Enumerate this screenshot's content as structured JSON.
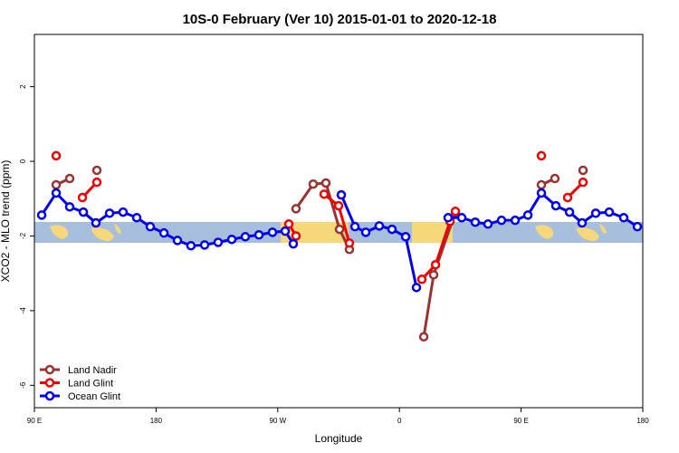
{
  "chart_data": {
    "type": "line",
    "title": "10S-0 February (Ver 10)   2015-01-01 to 2020-12-18",
    "xlabel": "Longitude",
    "ylabel": "XCO2 - MLO trend (ppm)",
    "xlim": [
      90,
      540
    ],
    "ylim": [
      -6.6,
      3.4
    ],
    "xticks": [
      {
        "value": 90,
        "label": "90 E"
      },
      180,
      {
        "value": 270,
        "label": "90 W"
      },
      {
        "value": 360,
        "label": "0"
      },
      {
        "value": 450,
        "label": "90 E"
      },
      {
        "value": 540,
        "label": "180"
      }
    ],
    "yticks": [
      -6,
      -4,
      -2,
      0,
      2
    ],
    "legend": "bottom-left",
    "series": [
      {
        "name": "Land Nadir",
        "color": "#993333",
        "x": [
          106.1,
          116.1,
          null,
          136.2,
          null,
          283.5,
          296.2,
          305.6,
          315.7,
          323.0,
          null,
          378.0,
          385.3,
          401.4,
          null,
          465.0,
          475.0,
          null,
          495.8
        ],
        "values": [
          -0.63,
          -0.46,
          null,
          -0.24,
          null,
          -1.27,
          -0.61,
          -0.58,
          -1.82,
          -2.36,
          null,
          -4.7,
          -3.04,
          -1.36,
          null,
          -0.63,
          -0.46,
          null,
          -0.24
        ]
      },
      {
        "name": "Land Glint",
        "color": "#ee0000",
        "x": [
          106.1,
          null,
          125.5,
          136.2,
          null,
          278.2,
          283.5,
          null,
          304.3,
          315.0,
          323.0,
          null,
          376.6,
          386.7,
          397.4,
          401.4,
          null,
          465.0,
          null,
          484.4,
          495.8
        ],
        "values": [
          0.15,
          null,
          -0.97,
          -0.56,
          null,
          -1.68,
          -2.0,
          null,
          -0.88,
          -1.19,
          -2.19,
          null,
          -3.16,
          -2.77,
          -1.61,
          -1.34,
          null,
          0.15,
          null,
          -0.97,
          -0.56
        ]
      },
      {
        "name": "Ocean Glint",
        "color": "#0000ee",
        "x": [
          95.4,
          106.1,
          116.1,
          126.2,
          135.5,
          145.6,
          155.6,
          165.7,
          175.7,
          185.8,
          195.8,
          205.8,
          215.9,
          225.9,
          236.0,
          246.0,
          256.1,
          266.1,
          275.5,
          281.5,
          null,
          317.0,
          327.1,
          335.1,
          345.1,
          354.5,
          364.6,
          372.6,
          null,
          396.0,
          406.1,
          416.1,
          425.5,
          435.5,
          445.6,
          455.0,
          465.0,
          475.7,
          485.8,
          495.1,
          505.2,
          515.2,
          525.9,
          536.0
        ],
        "values": [
          -1.44,
          -0.85,
          -1.22,
          -1.36,
          -1.65,
          -1.39,
          -1.36,
          -1.51,
          -1.75,
          -1.92,
          -2.12,
          -2.26,
          -2.24,
          -2.17,
          -2.09,
          -2.02,
          -1.97,
          -1.9,
          -1.87,
          -2.21,
          null,
          -0.9,
          -1.75,
          -1.9,
          -1.73,
          -1.82,
          -2.02,
          -3.38,
          null,
          -1.51,
          -1.51,
          -1.63,
          -1.68,
          -1.58,
          -1.58,
          -1.44,
          -0.85,
          -1.19,
          -1.36,
          -1.65,
          -1.39,
          -1.36,
          -1.51,
          -1.75
        ]
      }
    ]
  }
}
